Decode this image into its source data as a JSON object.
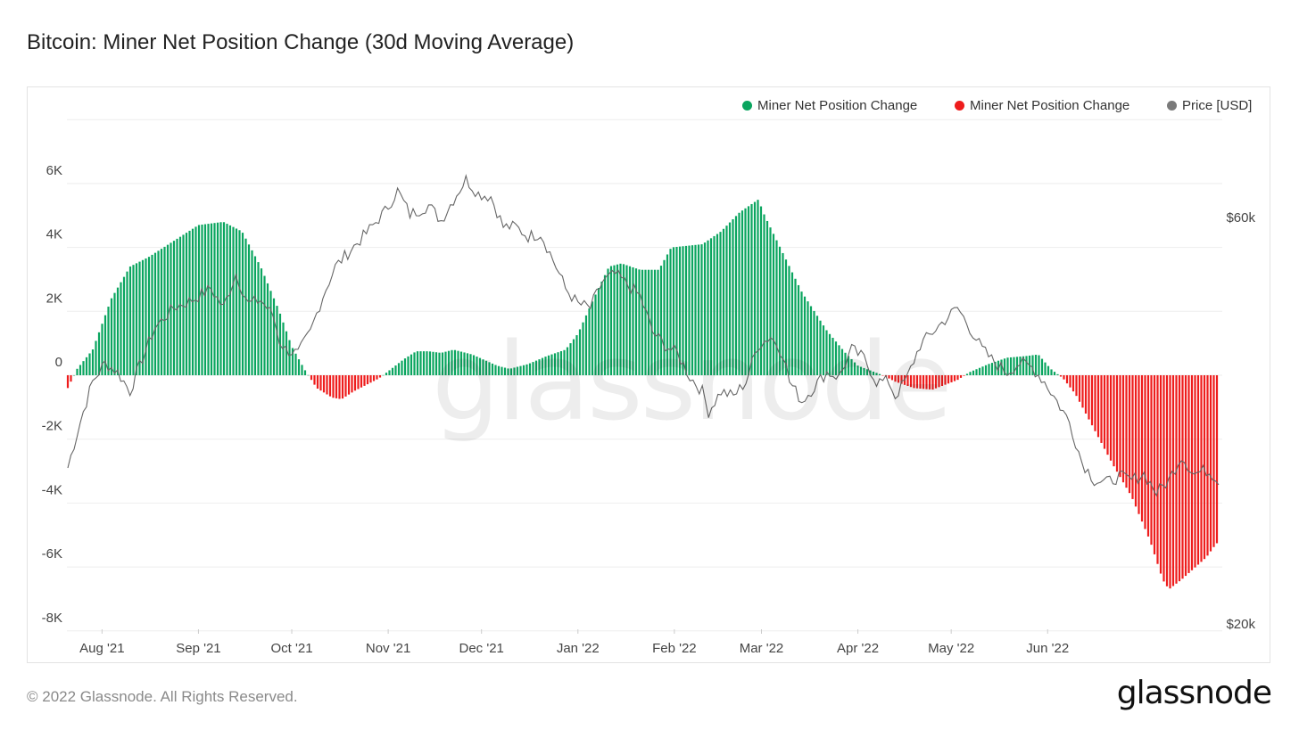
{
  "header": {
    "title": "Bitcoin: Miner Net Position Change (30d Moving Average)"
  },
  "legend": [
    {
      "label": "Miner Net Position Change",
      "color": "#0aa55f"
    },
    {
      "label": "Miner Net Position Change",
      "color": "#ee1c1c"
    },
    {
      "label": "Price [USD]",
      "color": "#7a7a7a"
    }
  ],
  "footer": {
    "copyright": "© 2022 Glassnode. All Rights Reserved.",
    "brand": "glassnode"
  },
  "watermark": "glassnode",
  "chart_data": {
    "type": "bar",
    "title": "Bitcoin: Miner Net Position Change (30d Moving Average)",
    "x_range": [
      "2021-07-21",
      "2022-06-09"
    ],
    "x_ticks": [
      "Aug '21",
      "Sep '21",
      "Oct '21",
      "Nov '21",
      "Dec '21",
      "Jan '22",
      "Feb '22",
      "Mar '22",
      "Apr '22",
      "May '22",
      "Jun '22"
    ],
    "y_left": {
      "ticks": [
        "6K",
        "4K",
        "2K",
        "0",
        "-2K",
        "-4K",
        "-6K",
        "-8K"
      ],
      "range": [
        -8000,
        8000
      ]
    },
    "y_right": {
      "ticks": [
        "$60k",
        "$20k"
      ],
      "scale": "log",
      "range_usd": [
        20000,
        75000
      ]
    },
    "grid": true,
    "legend_position": "top-right",
    "series": [
      {
        "name": "Miner Net Position Change",
        "unit": "BTC",
        "positive_color": "#0aa55f",
        "negative_color": "#ee1c1c",
        "keypoints_day_value": [
          [
            0,
            -400
          ],
          [
            3,
            200
          ],
          [
            8,
            800
          ],
          [
            14,
            2400
          ],
          [
            20,
            3400
          ],
          [
            26,
            3700
          ],
          [
            34,
            4200
          ],
          [
            42,
            4700
          ],
          [
            50,
            4800
          ],
          [
            56,
            4500
          ],
          [
            62,
            3400
          ],
          [
            68,
            2000
          ],
          [
            72,
            900
          ],
          [
            76,
            200
          ],
          [
            80,
            -400
          ],
          [
            85,
            -700
          ],
          [
            88,
            -750
          ],
          [
            92,
            -500
          ],
          [
            100,
            -100
          ],
          [
            104,
            200
          ],
          [
            108,
            500
          ],
          [
            112,
            750
          ],
          [
            116,
            750
          ],
          [
            120,
            700
          ],
          [
            124,
            800
          ],
          [
            130,
            650
          ],
          [
            138,
            300
          ],
          [
            142,
            200
          ],
          [
            148,
            350
          ],
          [
            154,
            600
          ],
          [
            160,
            800
          ],
          [
            164,
            1300
          ],
          [
            170,
            2600
          ],
          [
            174,
            3400
          ],
          [
            178,
            3500
          ],
          [
            184,
            3300
          ],
          [
            190,
            3300
          ],
          [
            194,
            4000
          ],
          [
            204,
            4100
          ],
          [
            210,
            4500
          ],
          [
            216,
            5100
          ],
          [
            222,
            5500
          ],
          [
            224,
            5000
          ],
          [
            230,
            3800
          ],
          [
            236,
            2600
          ],
          [
            244,
            1400
          ],
          [
            250,
            700
          ],
          [
            254,
            300
          ],
          [
            258,
            150
          ],
          [
            262,
            0
          ],
          [
            266,
            -200
          ],
          [
            272,
            -400
          ],
          [
            278,
            -450
          ],
          [
            286,
            -150
          ],
          [
            290,
            100
          ],
          [
            296,
            350
          ],
          [
            302,
            550
          ],
          [
            308,
            600
          ],
          [
            312,
            650
          ],
          [
            316,
            200
          ],
          [
            320,
            -100
          ],
          [
            324,
            -600
          ],
          [
            330,
            -1700
          ],
          [
            336,
            -2800
          ],
          [
            342,
            -3800
          ],
          [
            348,
            -5200
          ],
          [
            352,
            -6400
          ],
          [
            354,
            -6700
          ],
          [
            358,
            -6400
          ],
          [
            366,
            -5700
          ],
          [
            369,
            -5300
          ],
          [
            370,
            -5200
          ]
        ]
      },
      {
        "name": "Price [USD]",
        "unit": "USD",
        "color": "#666666",
        "keypoints_day_value": [
          [
            0,
            30500
          ],
          [
            3,
            33500
          ],
          [
            8,
            38500
          ],
          [
            12,
            40500
          ],
          [
            16,
            39500
          ],
          [
            20,
            37500
          ],
          [
            24,
            41000
          ],
          [
            28,
            44500
          ],
          [
            34,
            47000
          ],
          [
            40,
            48000
          ],
          [
            46,
            49500
          ],
          [
            50,
            47000
          ],
          [
            54,
            51500
          ],
          [
            58,
            47500
          ],
          [
            62,
            48000
          ],
          [
            66,
            46000
          ],
          [
            68,
            43000
          ],
          [
            70,
            42000
          ],
          [
            74,
            41500
          ],
          [
            78,
            44000
          ],
          [
            82,
            48500
          ],
          [
            86,
            52500
          ],
          [
            90,
            54500
          ],
          [
            96,
            57500
          ],
          [
            102,
            61000
          ],
          [
            106,
            64500
          ],
          [
            110,
            60500
          ],
          [
            116,
            62000
          ],
          [
            120,
            59500
          ],
          [
            124,
            63000
          ],
          [
            128,
            66500
          ],
          [
            132,
            64000
          ],
          [
            136,
            63500
          ],
          [
            140,
            58500
          ],
          [
            144,
            58500
          ],
          [
            148,
            57000
          ],
          [
            152,
            57500
          ],
          [
            156,
            53500
          ],
          [
            160,
            49500
          ],
          [
            164,
            47500
          ],
          [
            168,
            47000
          ],
          [
            172,
            50500
          ],
          [
            176,
            51500
          ],
          [
            180,
            50000
          ],
          [
            184,
            48500
          ],
          [
            188,
            44000
          ],
          [
            192,
            42500
          ],
          [
            196,
            41500
          ],
          [
            200,
            39000
          ],
          [
            204,
            37500
          ],
          [
            206,
            35500
          ],
          [
            210,
            37500
          ],
          [
            214,
            37000
          ],
          [
            218,
            38500
          ],
          [
            222,
            42500
          ],
          [
            226,
            43500
          ],
          [
            230,
            41500
          ],
          [
            232,
            38500
          ],
          [
            236,
            36500
          ],
          [
            240,
            38000
          ],
          [
            244,
            39500
          ],
          [
            248,
            39000
          ],
          [
            252,
            42000
          ],
          [
            256,
            41000
          ],
          [
            260,
            38500
          ],
          [
            264,
            38500
          ],
          [
            266,
            37000
          ],
          [
            270,
            39000
          ],
          [
            274,
            42500
          ],
          [
            278,
            44000
          ],
          [
            282,
            45500
          ],
          [
            286,
            47000
          ],
          [
            290,
            44500
          ],
          [
            294,
            42000
          ],
          [
            298,
            40500
          ],
          [
            302,
            39500
          ],
          [
            306,
            40500
          ],
          [
            310,
            40000
          ],
          [
            314,
            38500
          ],
          [
            318,
            36500
          ],
          [
            322,
            34500
          ],
          [
            326,
            31000
          ],
          [
            330,
            29500
          ],
          [
            334,
            29300
          ],
          [
            338,
            29800
          ],
          [
            342,
            29500
          ],
          [
            346,
            30000
          ],
          [
            350,
            28500
          ],
          [
            354,
            29500
          ],
          [
            358,
            31500
          ],
          [
            362,
            30000
          ],
          [
            366,
            30300
          ],
          [
            369,
            29800
          ],
          [
            370,
            29500
          ]
        ]
      }
    ]
  }
}
